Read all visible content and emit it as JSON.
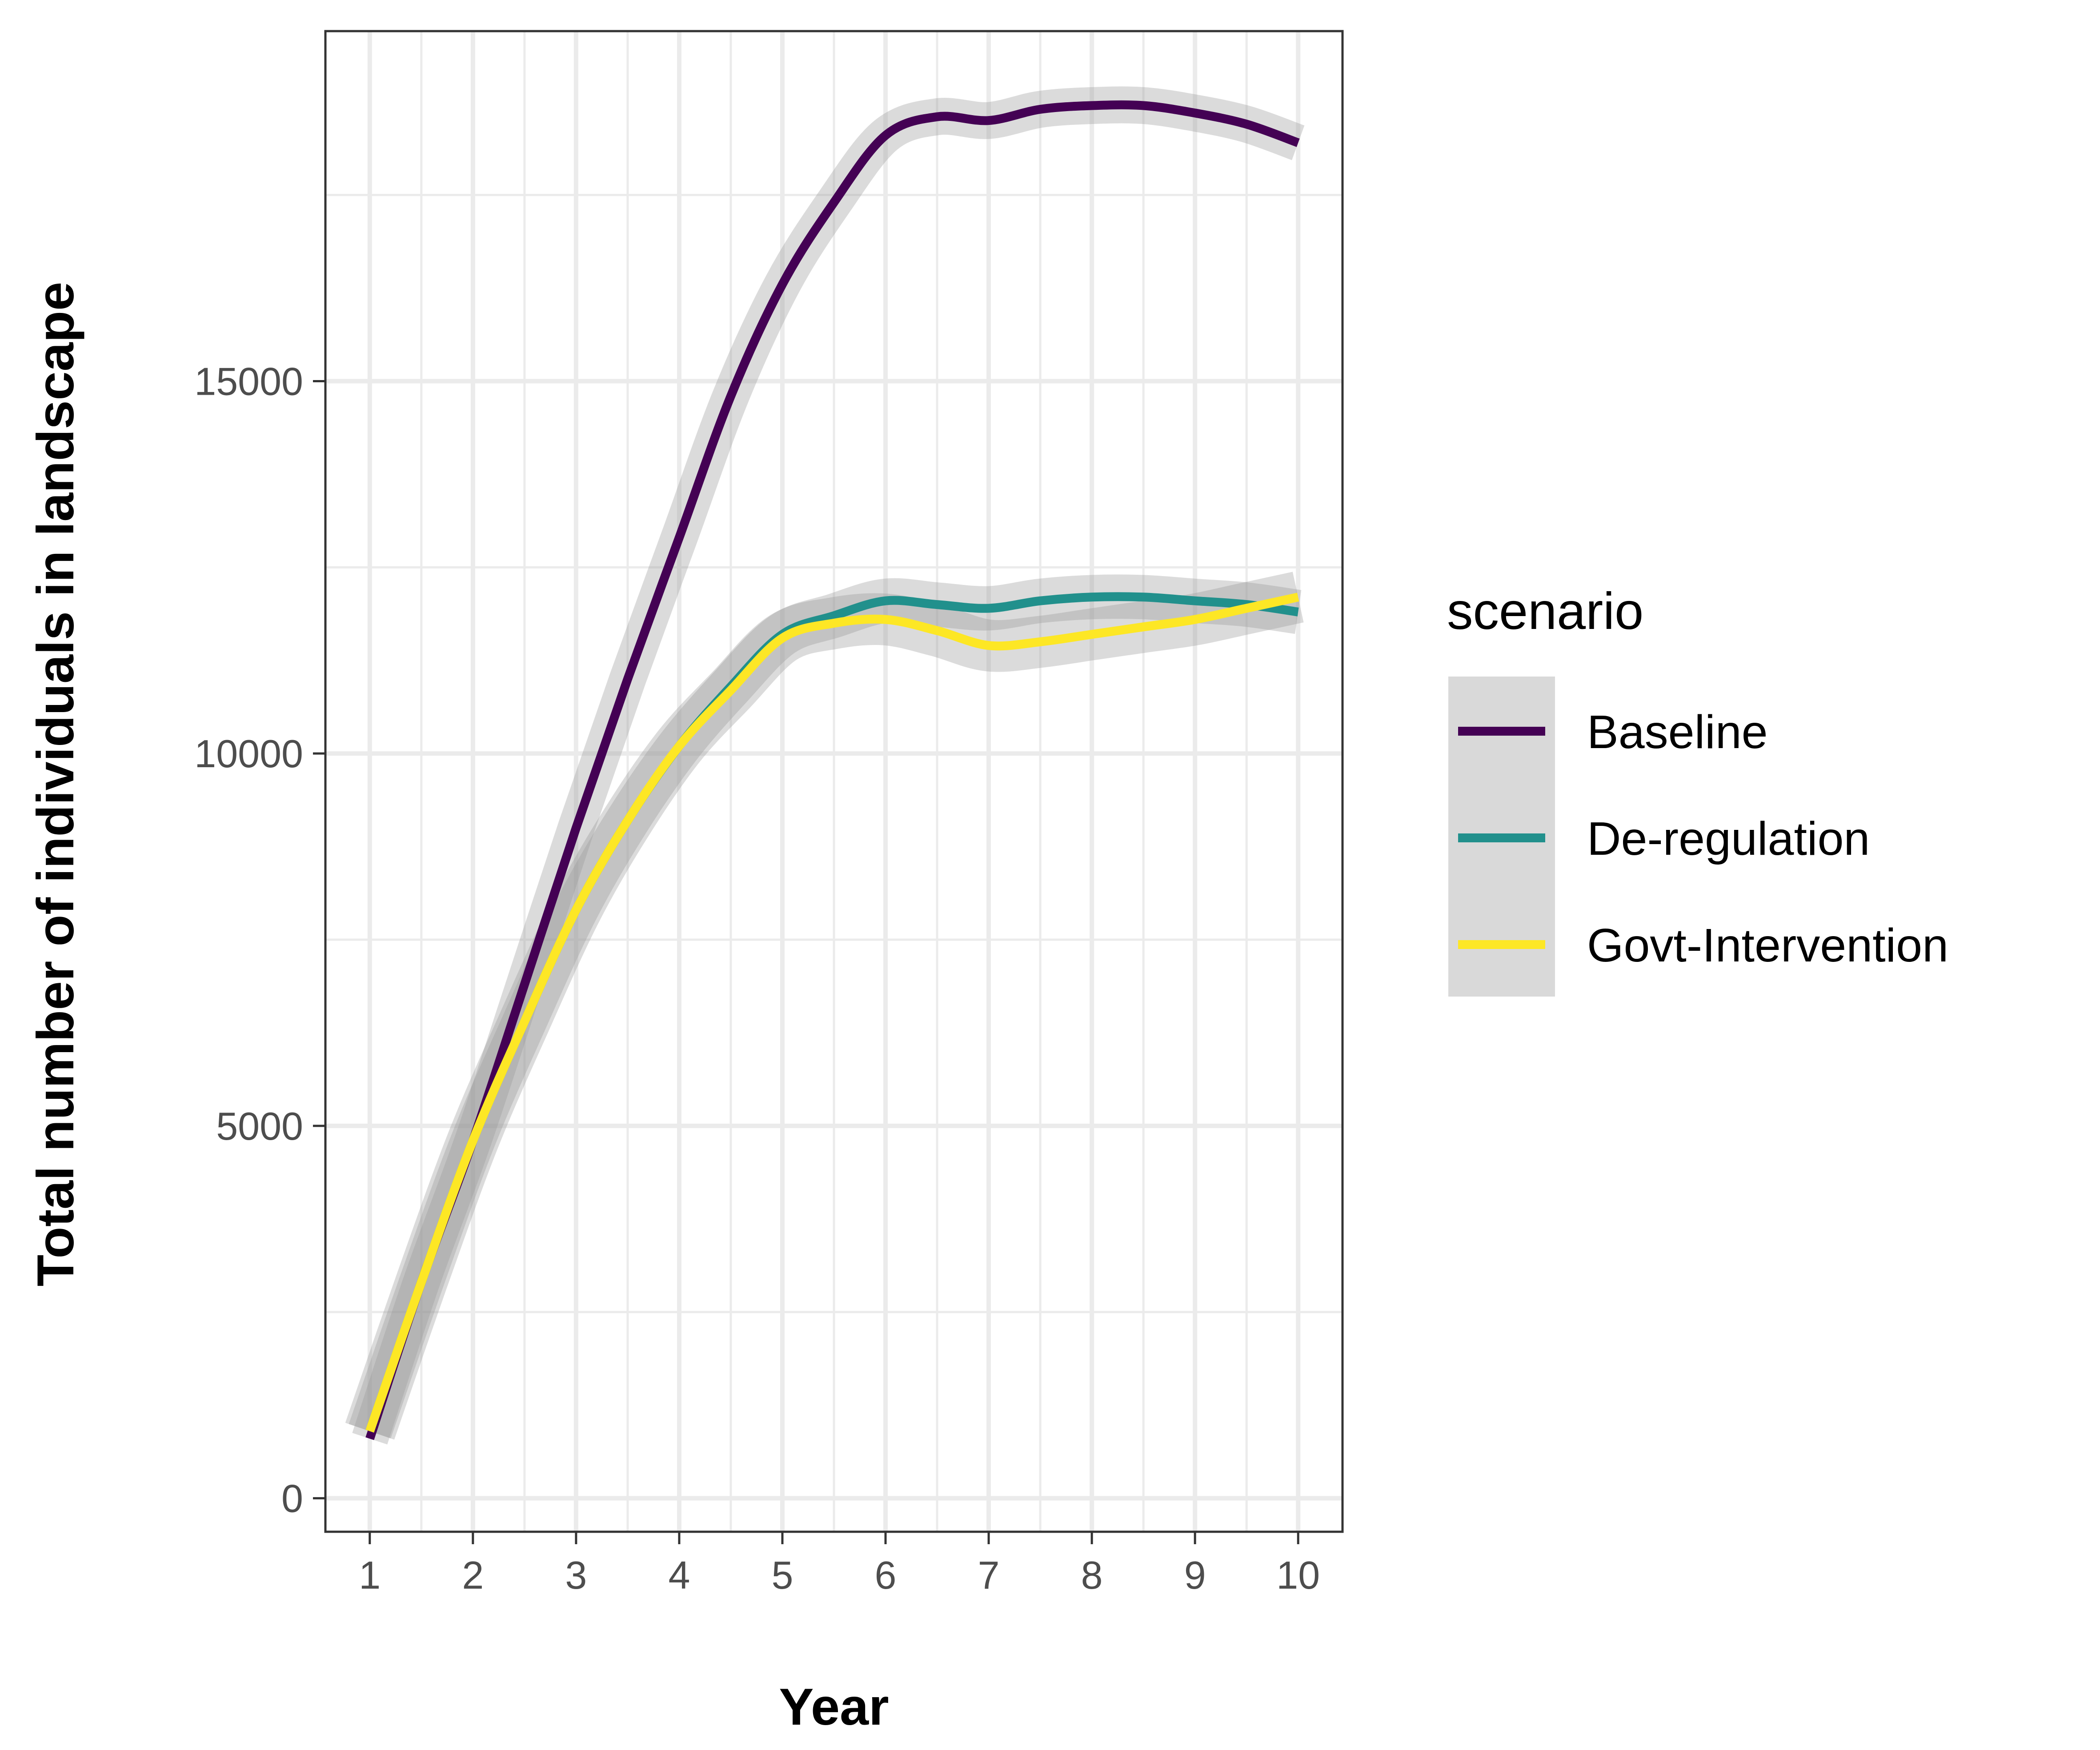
{
  "chart_data": {
    "type": "line",
    "xlabel": "Year",
    "ylabel": "Total number of individuals in landscape",
    "xlim": [
      0.57,
      10.43
    ],
    "ylim": [
      -450,
      19700
    ],
    "x_ticks": [
      1,
      2,
      3,
      4,
      5,
      6,
      7,
      8,
      9,
      10
    ],
    "x_tick_labels": [
      "1",
      "2",
      "3",
      "4",
      "5",
      "6",
      "7",
      "8",
      "9",
      "10"
    ],
    "y_ticks": [
      0,
      5000,
      10000,
      15000
    ],
    "y_tick_labels": [
      "0",
      "5000",
      "10000",
      "15000"
    ],
    "grid": true,
    "legend": {
      "title": "scenario",
      "placement": "right"
    },
    "series": [
      {
        "name": "Baseline",
        "color": "#440154",
        "x": [
          1,
          1.5,
          2,
          2.5,
          3,
          3.5,
          4,
          4.5,
          5,
          5.5,
          6,
          6.5,
          7,
          7.5,
          8,
          8.5,
          9,
          9.5,
          10
        ],
        "values": [
          800,
          2900,
          4800,
          6900,
          9000,
          11000,
          12900,
          14800,
          16300,
          17400,
          18300,
          18550,
          18500,
          18650,
          18700,
          18700,
          18600,
          18450,
          18200
        ],
        "band": 200
      },
      {
        "name": "De-regulation",
        "color": "#21908C",
        "x": [
          1,
          1.5,
          2,
          2.5,
          3,
          3.5,
          4,
          4.5,
          5,
          5.5,
          6,
          6.5,
          7,
          7.5,
          8,
          8.5,
          9,
          9.5,
          10
        ],
        "values": [
          900,
          2900,
          4800,
          6400,
          7900,
          9100,
          10100,
          10900,
          11600,
          11850,
          12050,
          12000,
          11950,
          12050,
          12100,
          12100,
          12050,
          12000,
          11900
        ],
        "band": 250
      },
      {
        "name": "Govt-Intervention",
        "color": "#FDE725",
        "x": [
          1,
          1.5,
          2,
          2.5,
          3,
          3.5,
          4,
          4.5,
          5,
          5.5,
          6,
          6.5,
          7,
          7.5,
          8,
          8.5,
          9,
          9.5,
          10
        ],
        "values": [
          900,
          2900,
          4800,
          6400,
          7900,
          9100,
          10100,
          10850,
          11550,
          11750,
          11800,
          11650,
          11450,
          11500,
          11600,
          11700,
          11800,
          11950,
          12100
        ],
        "band": 300
      }
    ]
  }
}
